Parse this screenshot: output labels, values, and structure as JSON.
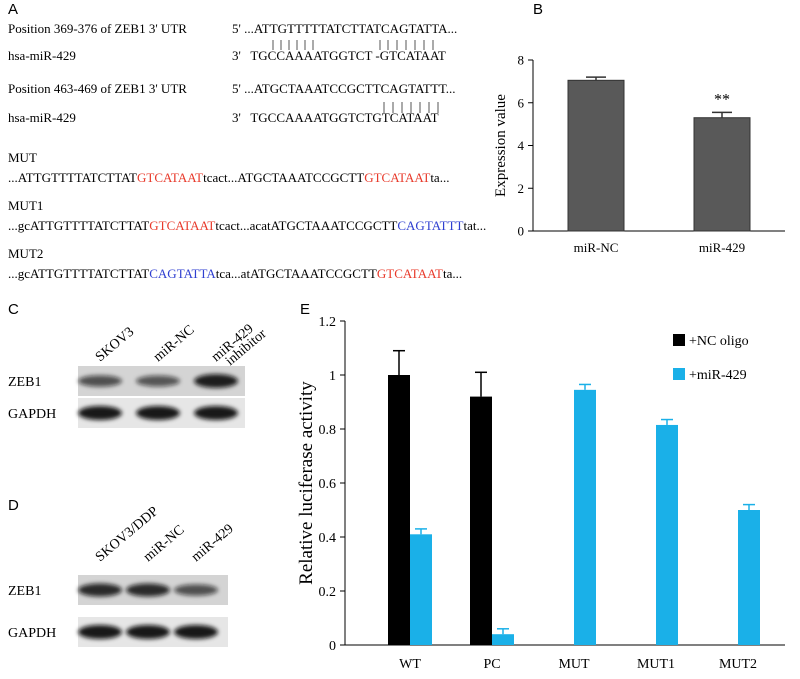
{
  "panel_labels": [
    "A",
    "B",
    "C",
    "D",
    "E"
  ],
  "alignments": [
    {
      "utr_label": "Position 369-376 of ZEB1 3' UTR",
      "utr_seq": "5' ...ATTGTTTTTATCTTATCAGTATTA...",
      "mirna_label": "hsa-miR-429",
      "mirna_seq": "3'   TGCCAAAATGGTCT -GTCATAAT"
    },
    {
      "utr_label": "Position 463-469 of ZEB1 3' UTR",
      "utr_seq": "5' ...ATGCTAAATCCGCTTCAGTATTT...",
      "mirna_label": "hsa-miR-429",
      "mirna_seq": "3'   TGCCAAAATGGTCTGTCATAAT"
    }
  ],
  "mutants": [
    {
      "name": "MUT",
      "segments": [
        {
          "text": "...ATTGTTTTATCTTAT",
          "color": "#000000"
        },
        {
          "text": "GTCATAAT",
          "color": "#e8392a"
        },
        {
          "text": "tcact...ATGCTAAATCCGCTT",
          "color": "#000000"
        },
        {
          "text": "GTCATAAT",
          "color": "#e8392a"
        },
        {
          "text": "ta...",
          "color": "#000000"
        }
      ]
    },
    {
      "name": "MUT1",
      "segments": [
        {
          "text": "...gcATTGTTTTATCTTAT",
          "color": "#000000"
        },
        {
          "text": "GTCATAAT",
          "color": "#e8392a"
        },
        {
          "text": "tcact...acatATGCTAAATCCGCTT",
          "color": "#000000"
        },
        {
          "text": "CAGTATTT",
          "color": "#2f3fd0"
        },
        {
          "text": "tat...",
          "color": "#000000"
        }
      ]
    },
    {
      "name": "MUT2",
      "segments": [
        {
          "text": "...gcATTGTTTTATCTTAT",
          "color": "#000000"
        },
        {
          "text": "CAGTATTA",
          "color": "#2f3fd0"
        },
        {
          "text": "tca...atATGCTAAATCCGCTT",
          "color": "#000000"
        },
        {
          "text": "GTCATAAT",
          "color": "#e8392a"
        },
        {
          "text": "ta...",
          "color": "#000000"
        }
      ]
    }
  ],
  "blots": [
    {
      "lanes": [
        [
          "SKOV3"
        ],
        [
          "miR-NC"
        ],
        [
          "miR-429",
          "inhibitor"
        ]
      ],
      "rows": [
        "ZEB1",
        "GAPDH"
      ]
    },
    {
      "lanes": [
        [
          "SKOV3/DDP"
        ],
        [
          "miR-NC"
        ],
        [
          "miR-429"
        ]
      ],
      "rows": [
        "ZEB1",
        "GAPDH"
      ]
    }
  ],
  "chart_data": [
    {
      "type": "bar",
      "ylabel": "Expression value",
      "categories": [
        "miR-NC",
        "miR-429"
      ],
      "series": [
        {
          "color": "#595959",
          "values": [
            7.05,
            5.3
          ],
          "errors": [
            0.15,
            0.25
          ]
        }
      ],
      "ylim": [
        0,
        8
      ],
      "yticks": [
        0,
        2,
        4,
        6,
        8
      ],
      "annotations": [
        {
          "text": "**",
          "category": "miR-429"
        }
      ]
    },
    {
      "type": "bar",
      "ylabel": "Relative luciferase activity",
      "categories": [
        "WT",
        "PC",
        "MUT",
        "MUT1",
        "MUT2"
      ],
      "series": [
        {
          "name": "+NC oligo",
          "color": "#000000",
          "values": [
            1.0,
            0.92,
            null,
            null,
            null
          ],
          "errors": [
            0.09,
            0.09,
            null,
            null,
            null
          ]
        },
        {
          "name": "+miR-429",
          "color": "#1ab0e8",
          "values": [
            0.41,
            0.04,
            0.945,
            0.815,
            0.5
          ],
          "errors": [
            0.02,
            0.02,
            0.02,
            0.02,
            0.02
          ]
        }
      ],
      "ylim": [
        0,
        1.2
      ],
      "yticks": [
        0,
        0.2,
        0.4,
        0.6,
        0.8,
        1,
        1.2
      ],
      "legend": "top-right"
    }
  ]
}
